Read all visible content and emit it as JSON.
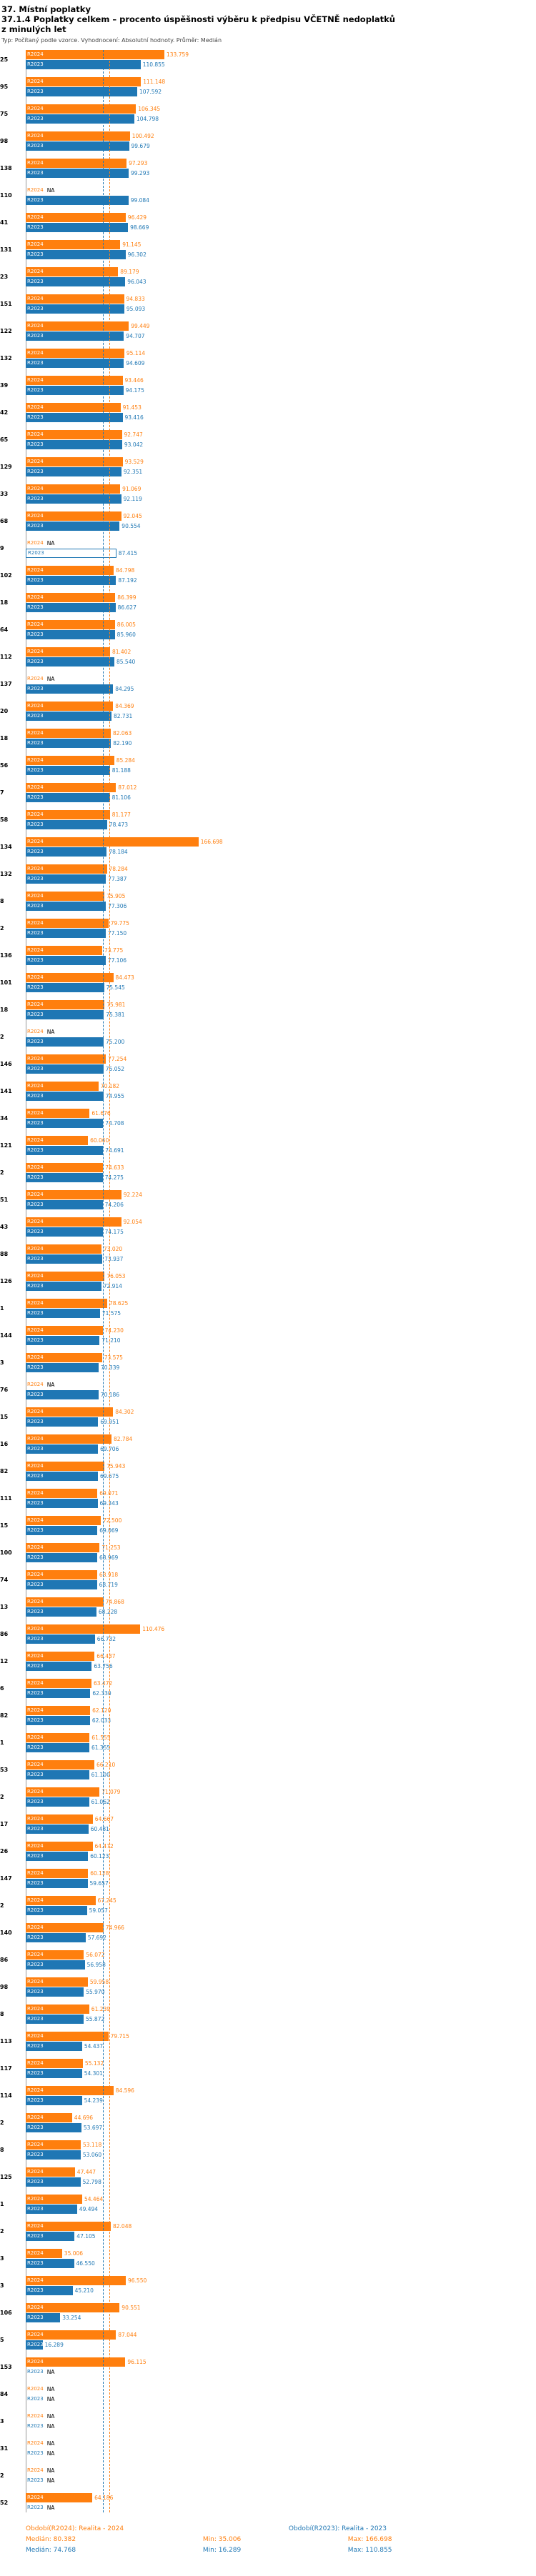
{
  "header": {
    "title": "37. Místní poplatky",
    "subtitle_line1": "37.1.4 Poplatky celkem – procento úspěšnosti výběru k předpisu VČETNĚ nedoplatků",
    "subtitle_line2": "z minulých let",
    "meta": "Typ: Počítaný podle vzorce. Vyhodnocení: Absolutní hodnoty. Průměr: Medián"
  },
  "chart_data": {
    "type": "bar",
    "orientation": "horizontal",
    "xlim": [
      0,
      170
    ],
    "legend_position": "bottom",
    "series": [
      {
        "key": "r2024",
        "label": "R2024",
        "color": "#ff7f0e",
        "median": 80.382,
        "min": 35.006,
        "max": 166.698
      },
      {
        "key": "r2023",
        "label": "R2023",
        "color": "#1f77b4",
        "median": 74.768,
        "min": 16.289,
        "max": 110.855
      }
    ],
    "groups": [
      {
        "id": "25",
        "r2024": "133.759",
        "r2023": "110.855"
      },
      {
        "id": "95",
        "r2024": "111.148",
        "r2023": "107.592"
      },
      {
        "id": "75",
        "r2024": "106.345",
        "r2023": "104.798"
      },
      {
        "id": "98",
        "r2024": "100.492",
        "r2023": "99.679"
      },
      {
        "id": "138",
        "r2024": "97.293",
        "r2023": "99.293"
      },
      {
        "id": "110",
        "r2024": "NA",
        "r2023": "99.084"
      },
      {
        "id": "41",
        "r2024": "96.429",
        "r2023": "98.669"
      },
      {
        "id": "131",
        "r2024": "91.145",
        "r2023": "96.302"
      },
      {
        "id": "23",
        "r2024": "89.179",
        "r2023": "96.043"
      },
      {
        "id": "151",
        "r2024": "94.833",
        "r2023": "95.093"
      },
      {
        "id": "122",
        "r2024": "99.449",
        "r2023": "94.707"
      },
      {
        "id": "132",
        "r2024": "95.114",
        "r2023": "94.609"
      },
      {
        "id": "39",
        "r2024": "93.446",
        "r2023": "94.175"
      },
      {
        "id": "42",
        "r2024": "91.453",
        "r2023": "93.416"
      },
      {
        "id": "65",
        "r2024": "92.747",
        "r2023": "93.042"
      },
      {
        "id": "129",
        "r2024": "93.529",
        "r2023": "92.351"
      },
      {
        "id": "33",
        "r2024": "91.069",
        "r2023": "92.119"
      },
      {
        "id": "68",
        "r2024": "92.045",
        "r2023": "90.554"
      },
      {
        "id": "9",
        "r2024": "NA",
        "r2023": "87.415",
        "highlight": true
      },
      {
        "id": "102",
        "r2024": "84.798",
        "r2023": "87.192"
      },
      {
        "id": "18",
        "r2024": "86.399",
        "r2023": "86.627"
      },
      {
        "id": "64",
        "r2024": "86.005",
        "r2023": "85.960"
      },
      {
        "id": "112",
        "r2024": "81.402",
        "r2023": "85.540"
      },
      {
        "id": "137",
        "r2024": "NA",
        "r2023": "84.295"
      },
      {
        "id": "20",
        "r2024": "84.369",
        "r2023": "82.731"
      },
      {
        "id": "18",
        "r2024": "82.063",
        "r2023": "82.190"
      },
      {
        "id": "56",
        "r2024": "85.284",
        "r2023": "81.188"
      },
      {
        "id": "7",
        "r2024": "87.012",
        "r2023": "81.106"
      },
      {
        "id": "58",
        "r2024": "81.177",
        "r2023": "78.473"
      },
      {
        "id": "134",
        "r2024": "166.698",
        "r2023": "78.184"
      },
      {
        "id": "132",
        "r2024": "78.284",
        "r2023": "77.387"
      },
      {
        "id": "8",
        "r2024": "75.905",
        "r2023": "77.306"
      },
      {
        "id": "2",
        "r2024": "79.775",
        "r2023": "77.150"
      },
      {
        "id": "136",
        "r2024": "73.775",
        "r2023": "77.106"
      },
      {
        "id": "101",
        "r2024": "84.473",
        "r2023": "75.545"
      },
      {
        "id": "18",
        "r2024": "75.981",
        "r2023": "75.381"
      },
      {
        "id": "2",
        "r2024": "NA",
        "r2023": "75.200"
      },
      {
        "id": "146",
        "r2024": "77.254",
        "r2023": "75.052"
      },
      {
        "id": "141",
        "r2024": "70.182",
        "r2023": "74.955"
      },
      {
        "id": "34",
        "r2024": "61.676",
        "r2023": "74.708"
      },
      {
        "id": "121",
        "r2024": "60.060",
        "r2023": "74.691"
      },
      {
        "id": "2",
        "r2024": "74.633",
        "r2023": "74.275"
      },
      {
        "id": "51",
        "r2024": "92.224",
        "r2023": "74.206"
      },
      {
        "id": "43",
        "r2024": "92.054",
        "r2023": "74.175"
      },
      {
        "id": "88",
        "r2024": "73.020",
        "r2023": "73.937"
      },
      {
        "id": "126",
        "r2024": "76.053",
        "r2023": "72.914"
      },
      {
        "id": "1",
        "r2024": "78.625",
        "r2023": "71.575"
      },
      {
        "id": "144",
        "r2024": "74.230",
        "r2023": "71.210"
      },
      {
        "id": "3",
        "r2024": "73.575",
        "r2023": "70.339"
      },
      {
        "id": "76",
        "r2024": "NA",
        "r2023": "70.186"
      },
      {
        "id": "15",
        "r2024": "84.302",
        "r2023": "69.951"
      },
      {
        "id": "16",
        "r2024": "82.784",
        "r2023": "69.706"
      },
      {
        "id": "82",
        "r2024": "75.943",
        "r2023": "69.675"
      },
      {
        "id": "111",
        "r2024": "69.071",
        "r2023": "69.343"
      },
      {
        "id": "15",
        "r2024": "72.500",
        "r2023": "69.069"
      },
      {
        "id": "100",
        "r2024": "71.253",
        "r2023": "68.969"
      },
      {
        "id": "74",
        "r2024": "68.918",
        "r2023": "68.719"
      },
      {
        "id": "13",
        "r2024": "74.868",
        "r2023": "68.228"
      },
      {
        "id": "86",
        "r2024": "110.476",
        "r2023": "66.732"
      },
      {
        "id": "12",
        "r2024": "66.437",
        "r2023": "63.756"
      },
      {
        "id": "6",
        "r2024": "63.472",
        "r2023": "62.330"
      },
      {
        "id": "82",
        "r2024": "62.120",
        "r2023": "62.033"
      },
      {
        "id": "1",
        "r2024": "61.555",
        "r2023": "61.355"
      },
      {
        "id": "53",
        "r2024": "66.210",
        "r2023": "61.100"
      },
      {
        "id": "2",
        "r2024": "71.079",
        "r2023": "61.062"
      },
      {
        "id": "17",
        "r2024": "64.667",
        "r2023": "60.481"
      },
      {
        "id": "26",
        "r2024": "64.472",
        "r2023": "60.123"
      },
      {
        "id": "147",
        "r2024": "60.128",
        "r2023": "59.657"
      },
      {
        "id": "2",
        "r2024": "67.245",
        "r2023": "59.057"
      },
      {
        "id": "140",
        "r2024": "74.966",
        "r2023": "57.692"
      },
      {
        "id": "86",
        "r2024": "56.072",
        "r2023": "56.958"
      },
      {
        "id": "98",
        "r2024": "59.958",
        "r2023": "55.970"
      },
      {
        "id": "8",
        "r2024": "61.239",
        "r2023": "55.872"
      },
      {
        "id": "113",
        "r2024": "79.715",
        "r2023": "54.437"
      },
      {
        "id": "117",
        "r2024": "55.132",
        "r2023": "54.301"
      },
      {
        "id": "114",
        "r2024": "84.596",
        "r2023": "54.239"
      },
      {
        "id": "2",
        "r2024": "44.696",
        "r2023": "53.697"
      },
      {
        "id": "8",
        "r2024": "53.118",
        "r2023": "53.060"
      },
      {
        "id": "125",
        "r2024": "47.447",
        "r2023": "52.798"
      },
      {
        "id": "1",
        "r2024": "54.464",
        "r2023": "49.494"
      },
      {
        "id": "2",
        "r2024": "82.048",
        "r2023": "47.105"
      },
      {
        "id": "3",
        "r2024": "35.006",
        "r2023": "46.550"
      },
      {
        "id": "3",
        "r2024": "96.550",
        "r2023": "45.210"
      },
      {
        "id": "106",
        "r2024": "90.551",
        "r2023": "33.254"
      },
      {
        "id": "5",
        "r2024": "87.044",
        "r2023": "16.289"
      },
      {
        "id": "153",
        "r2024": "96.115",
        "r2023": "NA"
      },
      {
        "id": "84",
        "r2024": "NA",
        "r2023": "NA"
      },
      {
        "id": "3",
        "r2024": "NA",
        "r2023": "NA"
      },
      {
        "id": "31",
        "r2024": "NA",
        "r2023": "NA"
      },
      {
        "id": "2",
        "r2024": "NA",
        "r2023": "NA"
      },
      {
        "id": "52",
        "r2024": "64.186",
        "r2023": "NA"
      }
    ]
  },
  "footer": {
    "period_r2024": "Období(R2024): Realita - 2024",
    "period_r2023": "Období(R2023): Realita - 2023",
    "r2024": {
      "median": "Medián: 80.382",
      "min": "Min: 35.006",
      "max": "Max: 166.698"
    },
    "r2023": {
      "median": "Medián: 74.768",
      "min": "Min: 16.289",
      "max": "Max: 110.855"
    }
  }
}
